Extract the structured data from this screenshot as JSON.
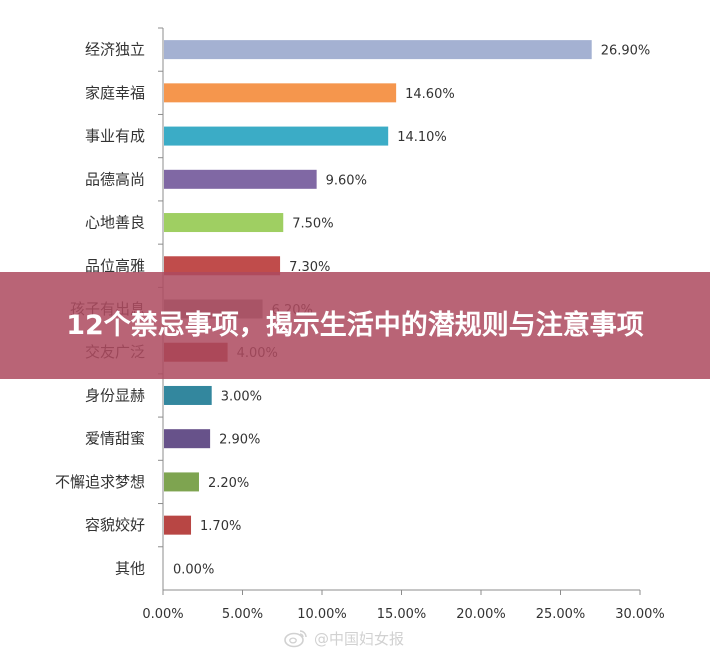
{
  "chart_data": {
    "type": "bar",
    "orientation": "horizontal",
    "categories": [
      "经济独立",
      "家庭幸福",
      "事业有成",
      "品德高尚",
      "心地善良",
      "品位高雅",
      "孩子有出息",
      "交友广泛",
      "身份显赫",
      "爱情甜蜜",
      "不懈追求梦想",
      "容貌姣好",
      "其他"
    ],
    "values": [
      26.9,
      14.6,
      14.1,
      9.6,
      7.5,
      7.3,
      6.2,
      4.0,
      3.0,
      2.9,
      2.2,
      1.7,
      0.0
    ],
    "value_labels": [
      "26.90%",
      "14.60%",
      "14.10%",
      "9.60%",
      "7.50%",
      "7.30%",
      "6.20%",
      "4.00%",
      "3.00%",
      "2.90%",
      "2.20%",
      "1.70%",
      "0.00%"
    ],
    "colors": [
      "#a4b1d2",
      "#f5964d",
      "#3bacc6",
      "#8068a4",
      "#9fcf62",
      "#c04c4b",
      "#8e8e8e",
      "#a33a36",
      "#33879e",
      "#67528a",
      "#7ea450",
      "#b84644",
      "#999999"
    ],
    "xlim": [
      0,
      30
    ],
    "x_ticks": [
      "0.00%",
      "5.00%",
      "10.00%",
      "15.00%",
      "20.00%",
      "25.00%",
      "30.00%"
    ],
    "grid": false,
    "legend": "none"
  },
  "banner": {
    "title": "12个禁忌事项，揭示生活中的潜规则与注意事项"
  },
  "watermark": {
    "text": "@中国妇女报",
    "icon": "weibo-icon"
  }
}
